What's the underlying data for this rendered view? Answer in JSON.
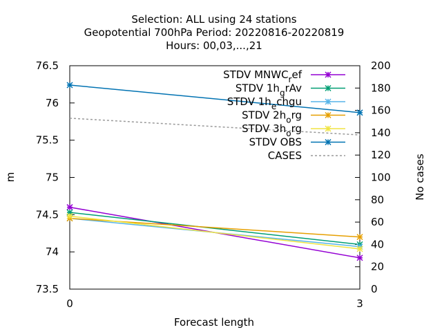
{
  "chart_data": {
    "type": "line",
    "title_lines": [
      "Selection: ALL using    24 stations",
      "Geopotential 700hPa   Period: 20220816-20220819",
      "Hours:  00,03,...,21"
    ],
    "xlabel": "Forecast length",
    "ylabel": "m",
    "y2label": "No cases",
    "x": [
      0,
      3
    ],
    "x_ticks": [
      "0",
      "3"
    ],
    "xlim": [
      0,
      3
    ],
    "ylim": [
      73.5,
      76.5
    ],
    "y_ticks": [
      "76.5",
      "76",
      "75.5",
      "75",
      "74.5",
      "74",
      "73.5"
    ],
    "y2lim": [
      0,
      200
    ],
    "y2_ticks": [
      "200",
      "180",
      "160",
      "140",
      "120",
      "100",
      "80",
      "60",
      "40",
      "20",
      "0"
    ],
    "legend_position": "top-right",
    "series": [
      {
        "name": "STDV MNWC_ref",
        "label_main": "STDV MNWC",
        "label_sub": "r",
        "label_rest": "ef",
        "color": "#9400d3",
        "marker": "x-star",
        "axis": "y1",
        "values": [
          74.6,
          73.92
        ]
      },
      {
        "name": "STDV 1h_grAv",
        "label_main": "STDV 1h",
        "label_sub": "g",
        "label_rest": "rAv",
        "color": "#009e73",
        "marker": "x-star",
        "axis": "y1",
        "values": [
          74.53,
          74.1
        ]
      },
      {
        "name": "STDV 1h_echgu",
        "label_main": "STDV 1h",
        "label_sub": "e",
        "label_rest": "chgu",
        "color": "#56b4e9",
        "marker": "x-star",
        "axis": "y1",
        "values": [
          74.45,
          74.07
        ]
      },
      {
        "name": "STDV 2h_org",
        "label_main": "STDV 2h",
        "label_sub": "o",
        "label_rest": "rg",
        "color": "#e69f00",
        "marker": "x-star",
        "axis": "y1",
        "values": [
          74.45,
          74.2
        ]
      },
      {
        "name": "STDV 3h_org",
        "label_main": "STDV 3h",
        "label_sub": "o",
        "label_rest": "rg",
        "color": "#f0e442",
        "marker": "x-star",
        "axis": "y1",
        "values": [
          74.48,
          74.04
        ]
      },
      {
        "name": "STDV OBS",
        "label_main": "STDV OBS",
        "label_sub": "",
        "label_rest": "",
        "color": "#0072b2",
        "marker": "x-star",
        "axis": "y1",
        "values": [
          76.24,
          75.87
        ]
      },
      {
        "name": "CASES",
        "label_main": "CASES",
        "label_sub": "",
        "label_rest": "",
        "color": "#999999",
        "marker": "none",
        "dashed": true,
        "axis": "y2",
        "values": [
          153,
          138
        ]
      }
    ]
  }
}
